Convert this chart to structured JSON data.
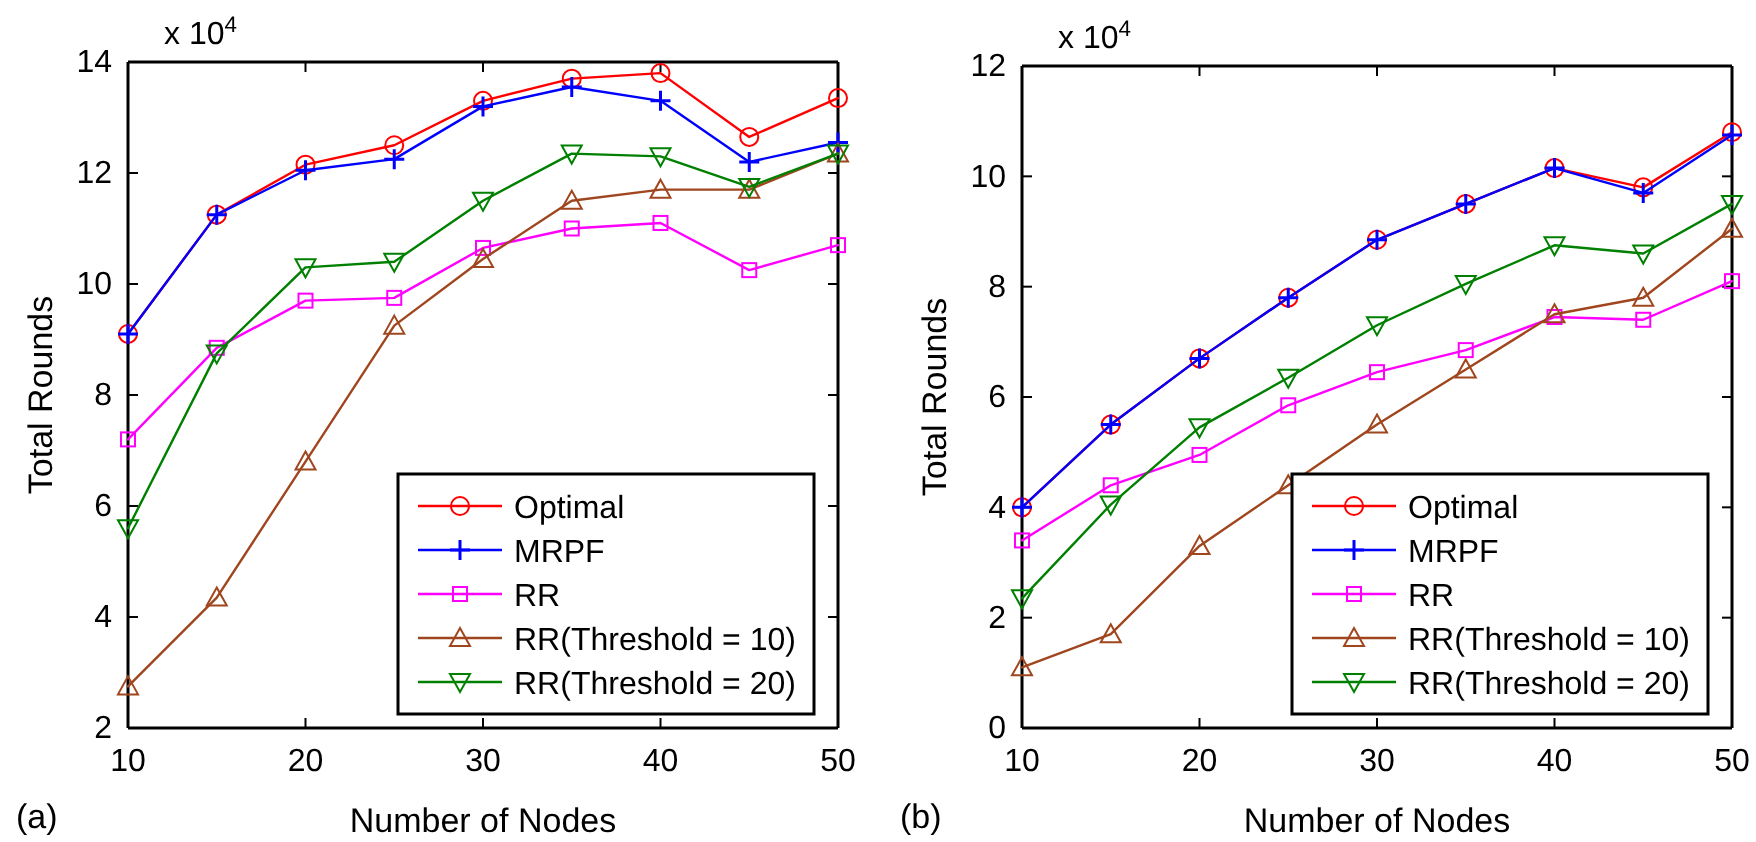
{
  "chart_data": [
    {
      "type": "line",
      "xlabel": "Number of Nodes",
      "ylabel": "Total Rounds",
      "x": [
        10,
        15,
        20,
        25,
        30,
        35,
        40,
        45,
        50
      ],
      "xlim": [
        10,
        50
      ],
      "xticks": [
        10,
        20,
        30,
        40,
        50
      ],
      "ylim": [
        2,
        14
      ],
      "yticks": [
        2,
        4,
        6,
        8,
        10,
        12,
        14
      ],
      "grid": false,
      "legend": "bottom right",
      "annotations": [
        "x 10$^{4}$",
        "(a)"
      ],
      "series": [
        {
          "name": "Optimal",
          "color": "#ff0000",
          "marker": "circle",
          "values": [
            9.1,
            11.25,
            12.15,
            12.5,
            13.3,
            13.7,
            13.8,
            12.65,
            13.35
          ]
        },
        {
          "name": "MRPF",
          "color": "#0000ff",
          "marker": "cross",
          "values": [
            9.1,
            11.25,
            12.05,
            12.25,
            13.2,
            13.55,
            13.3,
            12.2,
            12.55
          ]
        },
        {
          "name": "RR",
          "color": "#ff00ff",
          "marker": "square",
          "values": [
            7.2,
            8.85,
            9.7,
            9.75,
            10.65,
            11.0,
            11.1,
            10.25,
            10.7
          ]
        },
        {
          "name": "RR(Threshold = 10)",
          "color": "#a0461e",
          "marker": "triangle",
          "values": [
            2.75,
            4.35,
            6.8,
            9.25,
            10.45,
            11.5,
            11.7,
            11.7,
            12.35
          ]
        },
        {
          "name": "RR(Threshold = 20)",
          "color": "#008000",
          "marker": "triangle-down",
          "values": [
            5.6,
            8.75,
            10.3,
            10.4,
            11.5,
            12.35,
            12.3,
            11.75,
            12.35
          ]
        }
      ]
    },
    {
      "type": "line",
      "xlabel": "Number of Nodes",
      "ylabel": "Total Rounds",
      "x": [
        10,
        15,
        20,
        25,
        30,
        35,
        40,
        45,
        50
      ],
      "xlim": [
        10,
        50
      ],
      "xticks": [
        10,
        20,
        30,
        40,
        50
      ],
      "ylim": [
        0,
        12
      ],
      "yticks": [
        0,
        2,
        4,
        6,
        8,
        10,
        12
      ],
      "grid": false,
      "legend": "bottom right",
      "annotations": [
        "x 10$^{4}$",
        "(b)"
      ],
      "series": [
        {
          "name": "Optimal",
          "color": "#ff0000",
          "marker": "circle",
          "values": [
            4.0,
            5.5,
            6.7,
            7.8,
            8.85,
            9.5,
            10.15,
            9.8,
            10.8
          ]
        },
        {
          "name": "MRPF",
          "color": "#0000ff",
          "marker": "cross",
          "values": [
            4.0,
            5.5,
            6.7,
            7.8,
            8.85,
            9.5,
            10.15,
            9.7,
            10.75
          ]
        },
        {
          "name": "RR",
          "color": "#ff00ff",
          "marker": "square",
          "values": [
            3.4,
            4.4,
            4.95,
            5.85,
            6.45,
            6.85,
            7.45,
            7.4,
            8.1
          ]
        },
        {
          "name": "RR(Threshold = 10)",
          "color": "#a0461e",
          "marker": "triangle",
          "values": [
            1.1,
            1.7,
            3.3,
            4.4,
            5.5,
            6.5,
            7.5,
            7.8,
            9.05
          ]
        },
        {
          "name": "RR(Threshold = 20)",
          "color": "#008000",
          "marker": "triangle-down",
          "values": [
            2.35,
            4.05,
            5.45,
            6.35,
            7.3,
            8.05,
            8.75,
            8.6,
            9.5
          ]
        }
      ]
    }
  ]
}
